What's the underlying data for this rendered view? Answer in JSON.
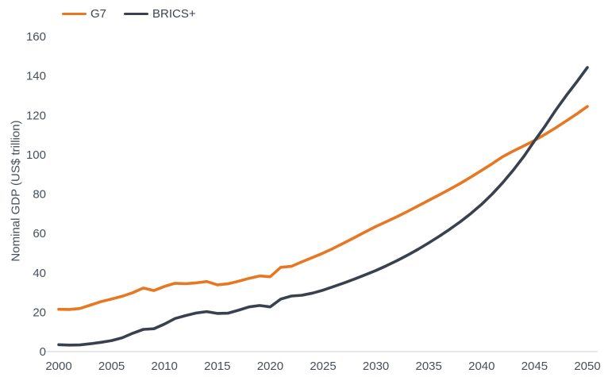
{
  "colors": {
    "g7": "#e87722",
    "brics": "#39414f",
    "axis_line": "#d9d9d9",
    "tick_text": "#474f5c"
  },
  "legend": [
    {
      "label": "G7",
      "color_key": "g7"
    },
    {
      "label": "BRICS+",
      "color_key": "brics"
    }
  ],
  "y_axis": {
    "title": "Nominal GDP (US$ trillion)"
  },
  "chart_data": {
    "type": "line",
    "title": "",
    "xlabel": "",
    "ylabel": "Nominal GDP (US$ trillion)",
    "xlim": [
      2000,
      2050
    ],
    "ylim": [
      0,
      160
    ],
    "grid": false,
    "legend_position": "top-left",
    "x_ticks": [
      2000,
      2005,
      2010,
      2015,
      2020,
      2025,
      2030,
      2035,
      2040,
      2045,
      2050
    ],
    "y_ticks": [
      0,
      20,
      40,
      60,
      80,
      100,
      120,
      140,
      160
    ],
    "x": [
      2000,
      2001,
      2002,
      2003,
      2004,
      2005,
      2006,
      2007,
      2008,
      2009,
      2010,
      2011,
      2012,
      2013,
      2014,
      2015,
      2016,
      2017,
      2018,
      2019,
      2020,
      2021,
      2022,
      2023,
      2024,
      2025,
      2026,
      2027,
      2028,
      2029,
      2030,
      2031,
      2032,
      2033,
      2034,
      2035,
      2036,
      2037,
      2038,
      2039,
      2040,
      2041,
      2042,
      2043,
      2044,
      2045,
      2046,
      2047,
      2048,
      2049,
      2050
    ],
    "series": [
      {
        "name": "G7",
        "color_key": "g7",
        "values": [
          21.5,
          21.4,
          21.9,
          23.6,
          25.4,
          26.7,
          28.1,
          29.9,
          32.3,
          31.0,
          33.1,
          34.7,
          34.5,
          34.9,
          35.6,
          33.9,
          34.4,
          35.7,
          37.2,
          38.4,
          38.0,
          42.8,
          43.3,
          45.6,
          47.8,
          50.0,
          52.5,
          55.2,
          58.0,
          60.8,
          63.5,
          66.0,
          68.5,
          71.2,
          74.0,
          76.8,
          79.6,
          82.5,
          85.5,
          88.7,
          92.0,
          95.4,
          99.0,
          101.9,
          104.5,
          107.2,
          110.3,
          113.6,
          117.1,
          120.7,
          124.5
        ]
      },
      {
        "name": "BRICS+",
        "color_key": "brics",
        "values": [
          3.5,
          3.3,
          3.4,
          4.0,
          4.7,
          5.6,
          7.0,
          9.3,
          11.3,
          11.6,
          14.0,
          16.8,
          18.3,
          19.6,
          20.3,
          19.4,
          19.5,
          21.0,
          22.7,
          23.4,
          22.7,
          26.7,
          28.2,
          28.6,
          29.7,
          31.2,
          33.0,
          34.9,
          36.9,
          39.0,
          41.2,
          43.6,
          46.2,
          49.0,
          52.0,
          55.2,
          58.6,
          62.2,
          66.0,
          70.2,
          74.8,
          80.0,
          85.8,
          92.2,
          99.2,
          107.0,
          114.5,
          122.5,
          130.0,
          137.0,
          144.3
        ]
      }
    ]
  }
}
